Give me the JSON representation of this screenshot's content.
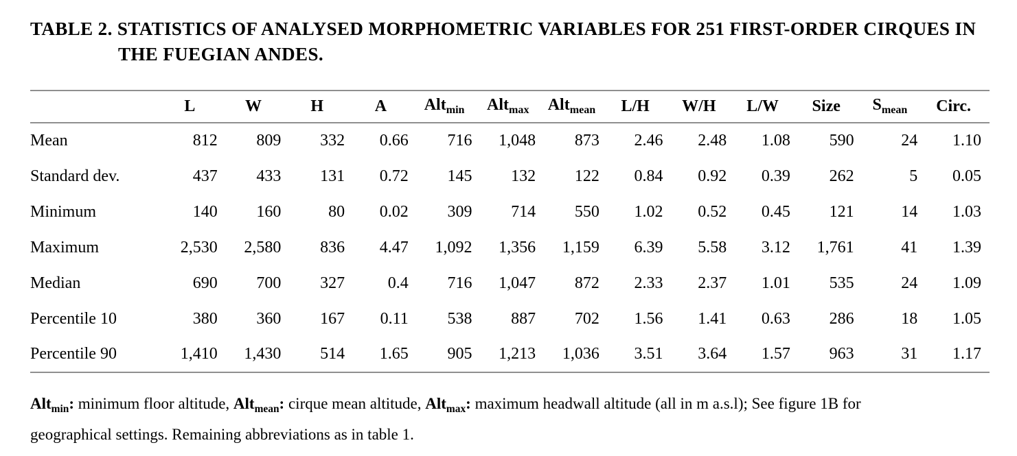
{
  "colors": {
    "text": "#000000",
    "rule": "#8f8f8f",
    "background": "#ffffff"
  },
  "title": {
    "line1": "TABLE 2. STATISTICS OF ANALYSED MORPHOMETRIC VARIABLES FOR 251 FIRST-ORDER CIRQUES IN",
    "line2": "THE FUEGIAN ANDES."
  },
  "table": {
    "columns": [
      {
        "base": "L",
        "sub": ""
      },
      {
        "base": "W",
        "sub": ""
      },
      {
        "base": "H",
        "sub": ""
      },
      {
        "base": "A",
        "sub": ""
      },
      {
        "base": "Alt",
        "sub": "min"
      },
      {
        "base": "Alt",
        "sub": "max"
      },
      {
        "base": "Alt",
        "sub": "mean"
      },
      {
        "base": "L/H",
        "sub": ""
      },
      {
        "base": "W/H",
        "sub": ""
      },
      {
        "base": "L/W",
        "sub": ""
      },
      {
        "base": "Size",
        "sub": ""
      },
      {
        "base": "S",
        "sub": "mean"
      },
      {
        "base": "Circ.",
        "sub": ""
      }
    ],
    "rows": [
      {
        "label": "Mean",
        "values": [
          "812",
          "809",
          "332",
          "0.66",
          "716",
          "1,048",
          "873",
          "2.46",
          "2.48",
          "1.08",
          "590",
          "24",
          "1.10"
        ]
      },
      {
        "label": "Standard dev.",
        "values": [
          "437",
          "433",
          "131",
          "0.72",
          "145",
          "132",
          "122",
          "0.84",
          "0.92",
          "0.39",
          "262",
          "5",
          "0.05"
        ]
      },
      {
        "label": "Minimum",
        "values": [
          "140",
          "160",
          "80",
          "0.02",
          "309",
          "714",
          "550",
          "1.02",
          "0.52",
          "0.45",
          "121",
          "14",
          "1.03"
        ]
      },
      {
        "label": "Maximum",
        "values": [
          "2,530",
          "2,580",
          "836",
          "4.47",
          "1,092",
          "1,356",
          "1,159",
          "6.39",
          "5.58",
          "3.12",
          "1,761",
          "41",
          "1.39"
        ]
      },
      {
        "label": "Median",
        "values": [
          "690",
          "700",
          "327",
          "0.4",
          "716",
          "1,047",
          "872",
          "2.33",
          "2.37",
          "1.01",
          "535",
          "24",
          "1.09"
        ]
      },
      {
        "label": "Percentile 10",
        "values": [
          "380",
          "360",
          "167",
          "0.11",
          "538",
          "887",
          "702",
          "1.56",
          "1.41",
          "0.63",
          "286",
          "18",
          "1.05"
        ]
      },
      {
        "label": "Percentile 90",
        "values": [
          "1,410",
          "1,430",
          "514",
          "1.65",
          "905",
          "1,213",
          "1,036",
          "3.51",
          "3.64",
          "1.57",
          "963",
          "31",
          "1.17"
        ]
      }
    ]
  },
  "footnote": {
    "segments": [
      {
        "text": "Alt",
        "bold": true
      },
      {
        "text": "min",
        "bold": true,
        "sub": true
      },
      {
        "text": ":",
        "bold": true
      },
      {
        "text": " minimum floor altitude, ",
        "bold": false
      },
      {
        "text": "Alt",
        "bold": true
      },
      {
        "text": "mean",
        "bold": true,
        "sub": true
      },
      {
        "text": ":",
        "bold": true
      },
      {
        "text": " cirque mean altitude, ",
        "bold": false
      },
      {
        "text": "Alt",
        "bold": true
      },
      {
        "text": "max",
        "bold": true,
        "sub": true
      },
      {
        "text": ":",
        "bold": true
      },
      {
        "text": " maximum headwall altitude (all in m a.s.l); See figure 1B for",
        "bold": false
      },
      {
        "break": true
      },
      {
        "text": "geographical settings. Remaining abbreviations as in table 1.",
        "bold": false
      }
    ]
  }
}
